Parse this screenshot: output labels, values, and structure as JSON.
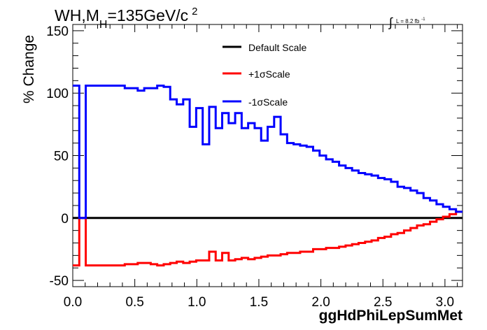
{
  "chart_data": {
    "type": "line",
    "title_main": "WH,M",
    "title_sub": "H",
    "title_rest": "=135GeV/c",
    "title_sup": "2",
    "lumi_symbol": "∫",
    "lumi_text": "L = 8.2 fb",
    "lumi_sup": "-1",
    "xlabel": "ggHdPhiLepSumMet",
    "ylabel": "% Change",
    "xlim": [
      0.0,
      3.1416
    ],
    "ylim": [
      -55,
      155
    ],
    "x_ticks": [
      0.0,
      0.5,
      1.0,
      1.5,
      2.0,
      2.5,
      3.0
    ],
    "x_tick_labels": [
      "0.0",
      "0.5",
      "1.0",
      "1.5",
      "2.0",
      "2.5",
      "3.0"
    ],
    "y_ticks": [
      -50,
      0,
      50,
      100,
      150
    ],
    "y_tick_labels": [
      "-50",
      "0",
      "50",
      "100",
      "150"
    ],
    "legend_position": "top-center",
    "bin_edges": [
      0.0,
      0.0524,
      0.1047,
      0.1571,
      0.2094,
      0.2618,
      0.3142,
      0.3665,
      0.4189,
      0.4712,
      0.5236,
      0.576,
      0.6283,
      0.6807,
      0.733,
      0.7854,
      0.8378,
      0.8901,
      0.9425,
      0.9948,
      1.0472,
      1.0996,
      1.1519,
      1.2043,
      1.2566,
      1.309,
      1.3614,
      1.4137,
      1.4661,
      1.5184,
      1.5708,
      1.6232,
      1.6755,
      1.7279,
      1.7802,
      1.8326,
      1.885,
      1.9373,
      1.9897,
      2.042,
      2.0944,
      2.1468,
      2.1991,
      2.2515,
      2.3038,
      2.3562,
      2.4086,
      2.4609,
      2.5133,
      2.5656,
      2.618,
      2.6704,
      2.7227,
      2.7751,
      2.8274,
      2.8798,
      2.9322,
      2.9845,
      3.0369,
      3.0892,
      3.1416
    ],
    "series": [
      {
        "name": "Default Scale",
        "color": "#000000",
        "values": [
          0,
          0,
          0,
          0,
          0,
          0,
          0,
          0,
          0,
          0,
          0,
          0,
          0,
          0,
          0,
          0,
          0,
          0,
          0,
          0,
          0,
          0,
          0,
          0,
          0,
          0,
          0,
          0,
          0,
          0,
          0,
          0,
          0,
          0,
          0,
          0,
          0,
          0,
          0,
          0,
          0,
          0,
          0,
          0,
          0,
          0,
          0,
          0,
          0,
          0,
          0,
          0,
          0,
          0,
          0,
          0,
          0,
          0,
          0,
          0
        ]
      },
      {
        "name": "+1σScale",
        "color": "#ff0000",
        "values": [
          -38,
          0,
          -38,
          -38,
          -38,
          -38,
          -38,
          -38,
          -37,
          -37,
          -36,
          -36,
          -37,
          -38,
          -37,
          -36,
          -35,
          -36,
          -35,
          -34,
          -34,
          -27,
          -34,
          -28,
          -34,
          -33,
          -32,
          -33,
          -32,
          -31,
          -30,
          -30,
          -29,
          -28,
          -28,
          -27,
          -27,
          -25,
          -25,
          -24,
          -24,
          -23,
          -22,
          -21,
          -20,
          -19,
          -18,
          -16,
          -15,
          -13,
          -12,
          -10,
          -8,
          -6,
          -5,
          -3,
          -1,
          1,
          3,
          5
        ]
      },
      {
        "name": "-1σScale",
        "color": "#0000ff",
        "values": [
          106,
          0,
          106,
          106,
          106,
          106,
          106,
          106,
          104,
          104,
          102,
          104,
          104,
          106,
          105,
          95,
          91,
          95,
          73,
          88,
          59,
          89,
          72,
          84,
          76,
          84,
          72,
          76,
          72,
          62,
          73,
          81,
          67,
          60,
          59,
          58,
          57,
          54,
          50,
          47,
          45,
          42,
          40,
          38,
          36,
          35,
          34,
          32,
          31,
          29,
          25,
          24,
          22,
          20,
          16,
          14,
          11,
          9,
          7,
          5
        ]
      }
    ]
  }
}
